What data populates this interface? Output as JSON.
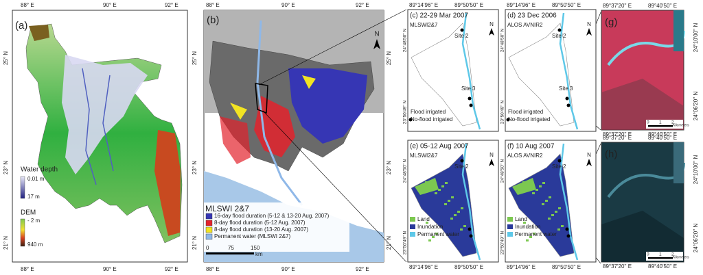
{
  "panel_a": {
    "label": "(a)",
    "lon_labels": [
      "88° E",
      "90° E",
      "92° E"
    ],
    "lat_labels": [
      "25° N",
      "23° N",
      "21° N"
    ],
    "legend": {
      "water_title": "Water depth",
      "water_min": "0.01 m",
      "water_max": "17 m",
      "dem_title": "DEM",
      "dem_min": "- 2 m",
      "dem_max": "940 m"
    }
  },
  "panel_b": {
    "label": "(b)",
    "lon_labels": [
      "88° E",
      "90° E",
      "92° E"
    ],
    "lat_labels": [
      "25° N",
      "23° N",
      "21° N"
    ],
    "north": "N",
    "legend": {
      "title": "MLSWI 2&7",
      "items": [
        {
          "text": "16-day flood duration (5-12 & 13-20 Aug. 2007)",
          "color": "#3636b4"
        },
        {
          "text": "8-day flood duration (5-12 Aug. 2007)",
          "color": "#e3222c"
        },
        {
          "text": "8-day flood duration (13-20 Aug. 2007)",
          "color": "#f2e422"
        },
        {
          "text": "Permanent water (MLSWI 2&7)",
          "color": "#8fb8e8"
        }
      ],
      "scale": [
        "0",
        "75",
        "150"
      ],
      "scale_unit": "km"
    }
  },
  "insets": {
    "lon_labels": [
      "89°14'96'' E",
      "89°50'50'' E"
    ],
    "lat_labels": [
      "24°48'50'' N",
      "23°50'49'' N"
    ],
    "north": "N",
    "panels": [
      {
        "label": "(c) 22-29 Mar 2007",
        "sensor": "MLSWI2&7"
      },
      {
        "label": "(d) 23 Dec 2006",
        "sensor": "ALOS AVNIR2"
      },
      {
        "label": "(e) 05-12 Aug 2007",
        "sensor": "MLSWI2&7"
      },
      {
        "label": "(f) 10 Aug 2007",
        "sensor": "ALOS AVNIR2"
      }
    ],
    "sites": [
      "Site 2",
      "Site 3"
    ],
    "symbols": [
      "Flood irrigated",
      "No-flood irrigated"
    ],
    "classes": [
      "Land",
      "Inundation",
      "Permanent water"
    ]
  },
  "zoom": {
    "panels": [
      "(g)",
      "(h)"
    ],
    "lon_labels": [
      "89°37'20'' E",
      "89°40'50'' E"
    ],
    "lat_labels": [
      "24°10'00'' N",
      "24°06'20'' N"
    ],
    "scale": [
      "0",
      "1",
      "2"
    ],
    "scale_unit": "Kilometers"
  }
}
